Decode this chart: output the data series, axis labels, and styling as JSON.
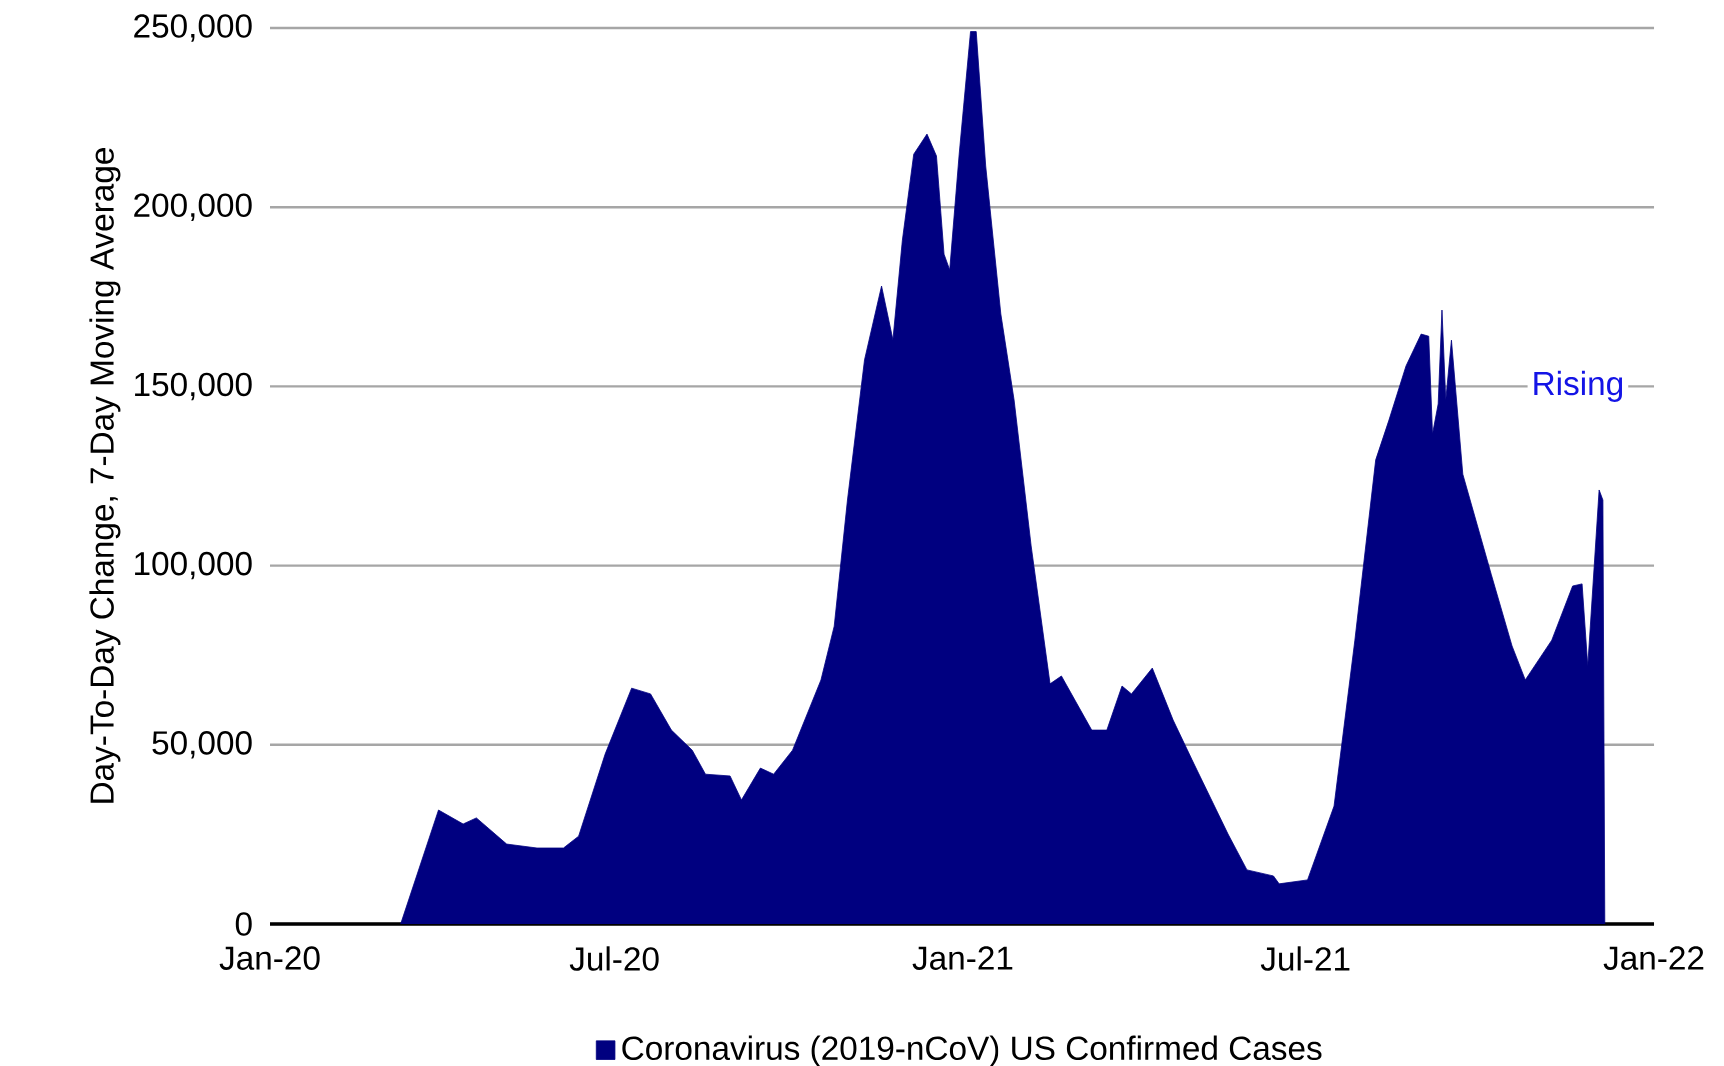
{
  "chart_data": {
    "type": "area",
    "ylabel": "Day-To-Day Change, 7-Day Moving Average",
    "x": [
      "2020-03-10",
      "2020-03-30",
      "2020-04-12",
      "2020-04-19",
      "2020-05-05",
      "2020-05-21",
      "2020-06-04",
      "2020-06-12",
      "2020-06-26",
      "2020-07-10",
      "2020-07-20",
      "2020-07-31",
      "2020-08-11",
      "2020-08-18",
      "2020-08-31",
      "2020-09-06",
      "2020-09-16",
      "2020-09-23",
      "2020-10-03",
      "2020-10-18",
      "2020-10-25",
      "2020-11-01",
      "2020-11-10",
      "2020-11-19",
      "2020-11-25",
      "2020-11-30",
      "2020-12-06",
      "2020-12-13",
      "2020-12-18",
      "2020-12-22",
      "2020-12-25",
      "2020-12-30",
      "2021-01-05",
      "2021-01-08",
      "2021-01-13",
      "2021-01-21",
      "2021-01-28",
      "2021-02-06",
      "2021-02-16",
      "2021-02-22",
      "2021-03-10",
      "2021-03-18",
      "2021-03-26",
      "2021-03-31",
      "2021-04-11",
      "2021-04-22",
      "2021-05-02",
      "2021-05-21",
      "2021-05-31",
      "2021-06-14",
      "2021-06-17",
      "2021-07-02",
      "2021-07-16",
      "2021-07-27",
      "2021-08-07",
      "2021-08-14",
      "2021-08-23",
      "2021-08-31",
      "2021-09-04",
      "2021-09-06",
      "2021-09-09",
      "2021-09-11",
      "2021-09-13",
      "2021-09-16",
      "2021-09-22",
      "2021-10-07",
      "2021-10-18",
      "2021-10-25",
      "2021-11-08",
      "2021-11-19",
      "2021-11-24",
      "2021-11-27",
      "2021-12-03",
      "2021-12-05",
      "2021-12-06"
    ],
    "series": [
      {
        "name": "Coronavirus (2019-nCoV) US Confirmed Cases",
        "color": "#000080",
        "values": [
          0,
          31800,
          27900,
          29600,
          22300,
          21200,
          21200,
          24500,
          47400,
          65800,
          64200,
          54100,
          48500,
          41800,
          41300,
          34600,
          43500,
          41800,
          48500,
          68100,
          83100,
          118300,
          157400,
          178000,
          163000,
          190800,
          214800,
          220400,
          214300,
          186900,
          182500,
          214800,
          249000,
          249000,
          211500,
          170200,
          146200,
          105500,
          67000,
          69200,
          54100,
          54100,
          66400,
          64200,
          71400,
          56900,
          45800,
          25100,
          15100,
          13400,
          11200,
          12300,
          32900,
          79200,
          129500,
          140600,
          155700,
          164600,
          164000,
          136700,
          145100,
          171300,
          146200,
          162900,
          125500,
          97600,
          77600,
          68100,
          79200,
          94300,
          94900,
          72000,
          121100,
          118300,
          0
        ]
      }
    ],
    "xlim": [
      "2020-01",
      "2022-01"
    ],
    "xticks": [
      {
        "value": "2020-01",
        "label": "Jan-20"
      },
      {
        "value": "2020-07",
        "label": "Jul-20"
      },
      {
        "value": "2021-01",
        "label": "Jan-21"
      },
      {
        "value": "2021-07",
        "label": "Jul-21"
      },
      {
        "value": "2022-01",
        "label": "Jan-22"
      }
    ],
    "ylim": [
      0,
      250000
    ],
    "yticks": [
      0,
      {
        "value": 50000,
        "label": "50,000"
      },
      {
        "value": 100000,
        "label": "100,000"
      },
      {
        "value": 150000,
        "label": "150,000"
      },
      {
        "value": 200000,
        "label": "200,000"
      },
      {
        "value": 250000,
        "label": "250,000"
      }
    ],
    "grid": "y",
    "legend": "bottom",
    "annotations": [
      "Rising"
    ]
  }
}
